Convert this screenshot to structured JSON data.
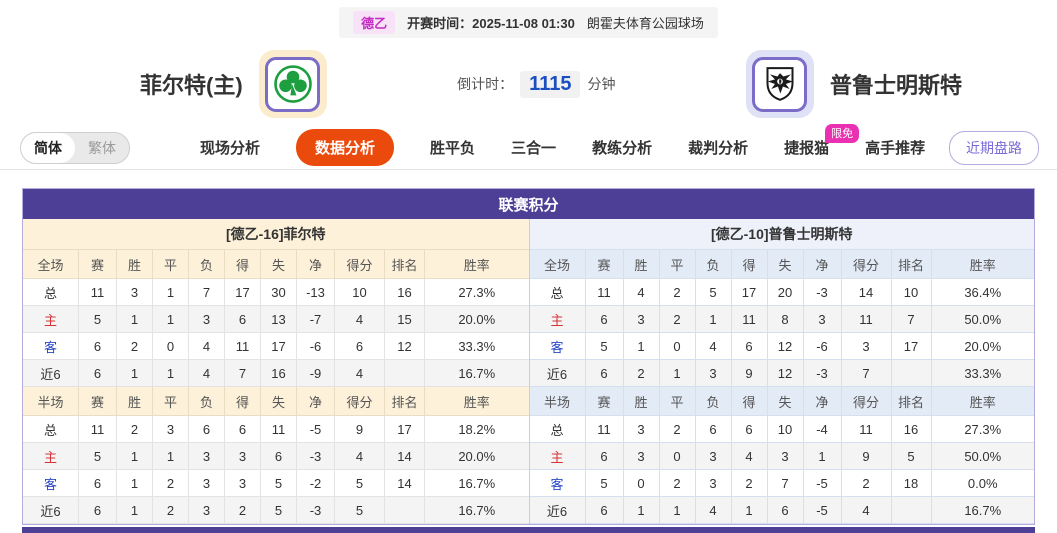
{
  "top_bar": {
    "league_badge": "德乙",
    "kickoff": "开赛时间：2025-11-08 01:30",
    "venue": "朗霍夫体育公园球场"
  },
  "match_header": {
    "home_team": "菲尔特(主)",
    "away_team": "普鲁士明斯特",
    "home_logo_icon": "clover-icon",
    "away_logo_icon": "eagle-shield-icon",
    "countdown_label": "倒计时：",
    "countdown_value": "1115",
    "countdown_unit": "分钟"
  },
  "nav": {
    "lang_simplified": "简体",
    "lang_traditional": "繁体",
    "items": [
      {
        "label": "现场分析",
        "active": false
      },
      {
        "label": "数据分析",
        "active": true
      },
      {
        "label": "胜平负",
        "active": false
      },
      {
        "label": "三合一",
        "active": false
      },
      {
        "label": "教练分析",
        "active": false
      },
      {
        "label": "裁判分析",
        "active": false
      },
      {
        "label": "捷报猫",
        "active": false,
        "badge": "限免"
      },
      {
        "label": "高手推荐",
        "active": false
      }
    ],
    "recent_trend_button": "近期盘路"
  },
  "section_title": "联赛积分",
  "tables": {
    "full_header": [
      "全场",
      "赛",
      "胜",
      "平",
      "负",
      "得",
      "失",
      "净",
      "得分",
      "排名",
      "胜率"
    ],
    "half_header": [
      "半场",
      "赛",
      "胜",
      "平",
      "负",
      "得",
      "失",
      "净",
      "得分",
      "排名",
      "胜率"
    ],
    "home": {
      "title": "[德乙-16]菲尔特",
      "full": [
        {
          "label": "总",
          "type": "total",
          "cells": [
            "11",
            "3",
            "1",
            "7",
            "17",
            "30",
            "-13",
            "10",
            "16",
            "27.3%"
          ]
        },
        {
          "label": "主",
          "type": "home",
          "cells": [
            "5",
            "1",
            "1",
            "3",
            "6",
            "13",
            "-7",
            "4",
            "15",
            "20.0%"
          ]
        },
        {
          "label": "客",
          "type": "away",
          "cells": [
            "6",
            "2",
            "0",
            "4",
            "11",
            "17",
            "-6",
            "6",
            "12",
            "33.3%"
          ]
        },
        {
          "label": "近6",
          "type": "recent",
          "cells": [
            "6",
            "1",
            "1",
            "4",
            "7",
            "16",
            "-9",
            "4",
            "",
            "16.7%"
          ]
        }
      ],
      "half": [
        {
          "label": "总",
          "type": "total",
          "cells": [
            "11",
            "2",
            "3",
            "6",
            "6",
            "11",
            "-5",
            "9",
            "17",
            "18.2%"
          ]
        },
        {
          "label": "主",
          "type": "home",
          "cells": [
            "5",
            "1",
            "1",
            "3",
            "3",
            "6",
            "-3",
            "4",
            "14",
            "20.0%"
          ]
        },
        {
          "label": "客",
          "type": "away",
          "cells": [
            "6",
            "1",
            "2",
            "3",
            "3",
            "5",
            "-2",
            "5",
            "14",
            "16.7%"
          ]
        },
        {
          "label": "近6",
          "type": "recent",
          "cells": [
            "6",
            "1",
            "2",
            "3",
            "2",
            "5",
            "-3",
            "5",
            "",
            "16.7%"
          ]
        }
      ]
    },
    "away": {
      "title": "[德乙-10]普鲁士明斯特",
      "full": [
        {
          "label": "总",
          "type": "total",
          "cells": [
            "11",
            "4",
            "2",
            "5",
            "17",
            "20",
            "-3",
            "14",
            "10",
            "36.4%"
          ]
        },
        {
          "label": "主",
          "type": "home",
          "cells": [
            "6",
            "3",
            "2",
            "1",
            "11",
            "8",
            "3",
            "11",
            "7",
            "50.0%"
          ]
        },
        {
          "label": "客",
          "type": "away",
          "cells": [
            "5",
            "1",
            "0",
            "4",
            "6",
            "12",
            "-6",
            "3",
            "17",
            "20.0%"
          ]
        },
        {
          "label": "近6",
          "type": "recent",
          "cells": [
            "6",
            "2",
            "1",
            "3",
            "9",
            "12",
            "-3",
            "7",
            "",
            "33.3%"
          ]
        }
      ],
      "half": [
        {
          "label": "总",
          "type": "total",
          "cells": [
            "11",
            "3",
            "2",
            "6",
            "6",
            "10",
            "-4",
            "11",
            "16",
            "27.3%"
          ]
        },
        {
          "label": "主",
          "type": "home",
          "cells": [
            "6",
            "3",
            "0",
            "3",
            "4",
            "3",
            "1",
            "9",
            "5",
            "50.0%"
          ]
        },
        {
          "label": "客",
          "type": "away",
          "cells": [
            "5",
            "0",
            "2",
            "3",
            "2",
            "7",
            "-5",
            "2",
            "18",
            "0.0%"
          ]
        },
        {
          "label": "近6",
          "type": "recent",
          "cells": [
            "6",
            "1",
            "1",
            "4",
            "1",
            "6",
            "-5",
            "4",
            "",
            "16.7%"
          ]
        }
      ]
    }
  },
  "colors": {
    "header_purple": "#4e3f96",
    "active_nav_orange": "#eb4a0d",
    "badge_magenta": "#ea31b1",
    "league_tag_pink": "#c32ac3",
    "countdown_blue": "#1b4fc1",
    "home_row_red": "#d43434",
    "away_row_blue": "#2847c8",
    "home_panel_cream": "#fdf1da",
    "away_panel_blue": "#e3ebf7"
  }
}
